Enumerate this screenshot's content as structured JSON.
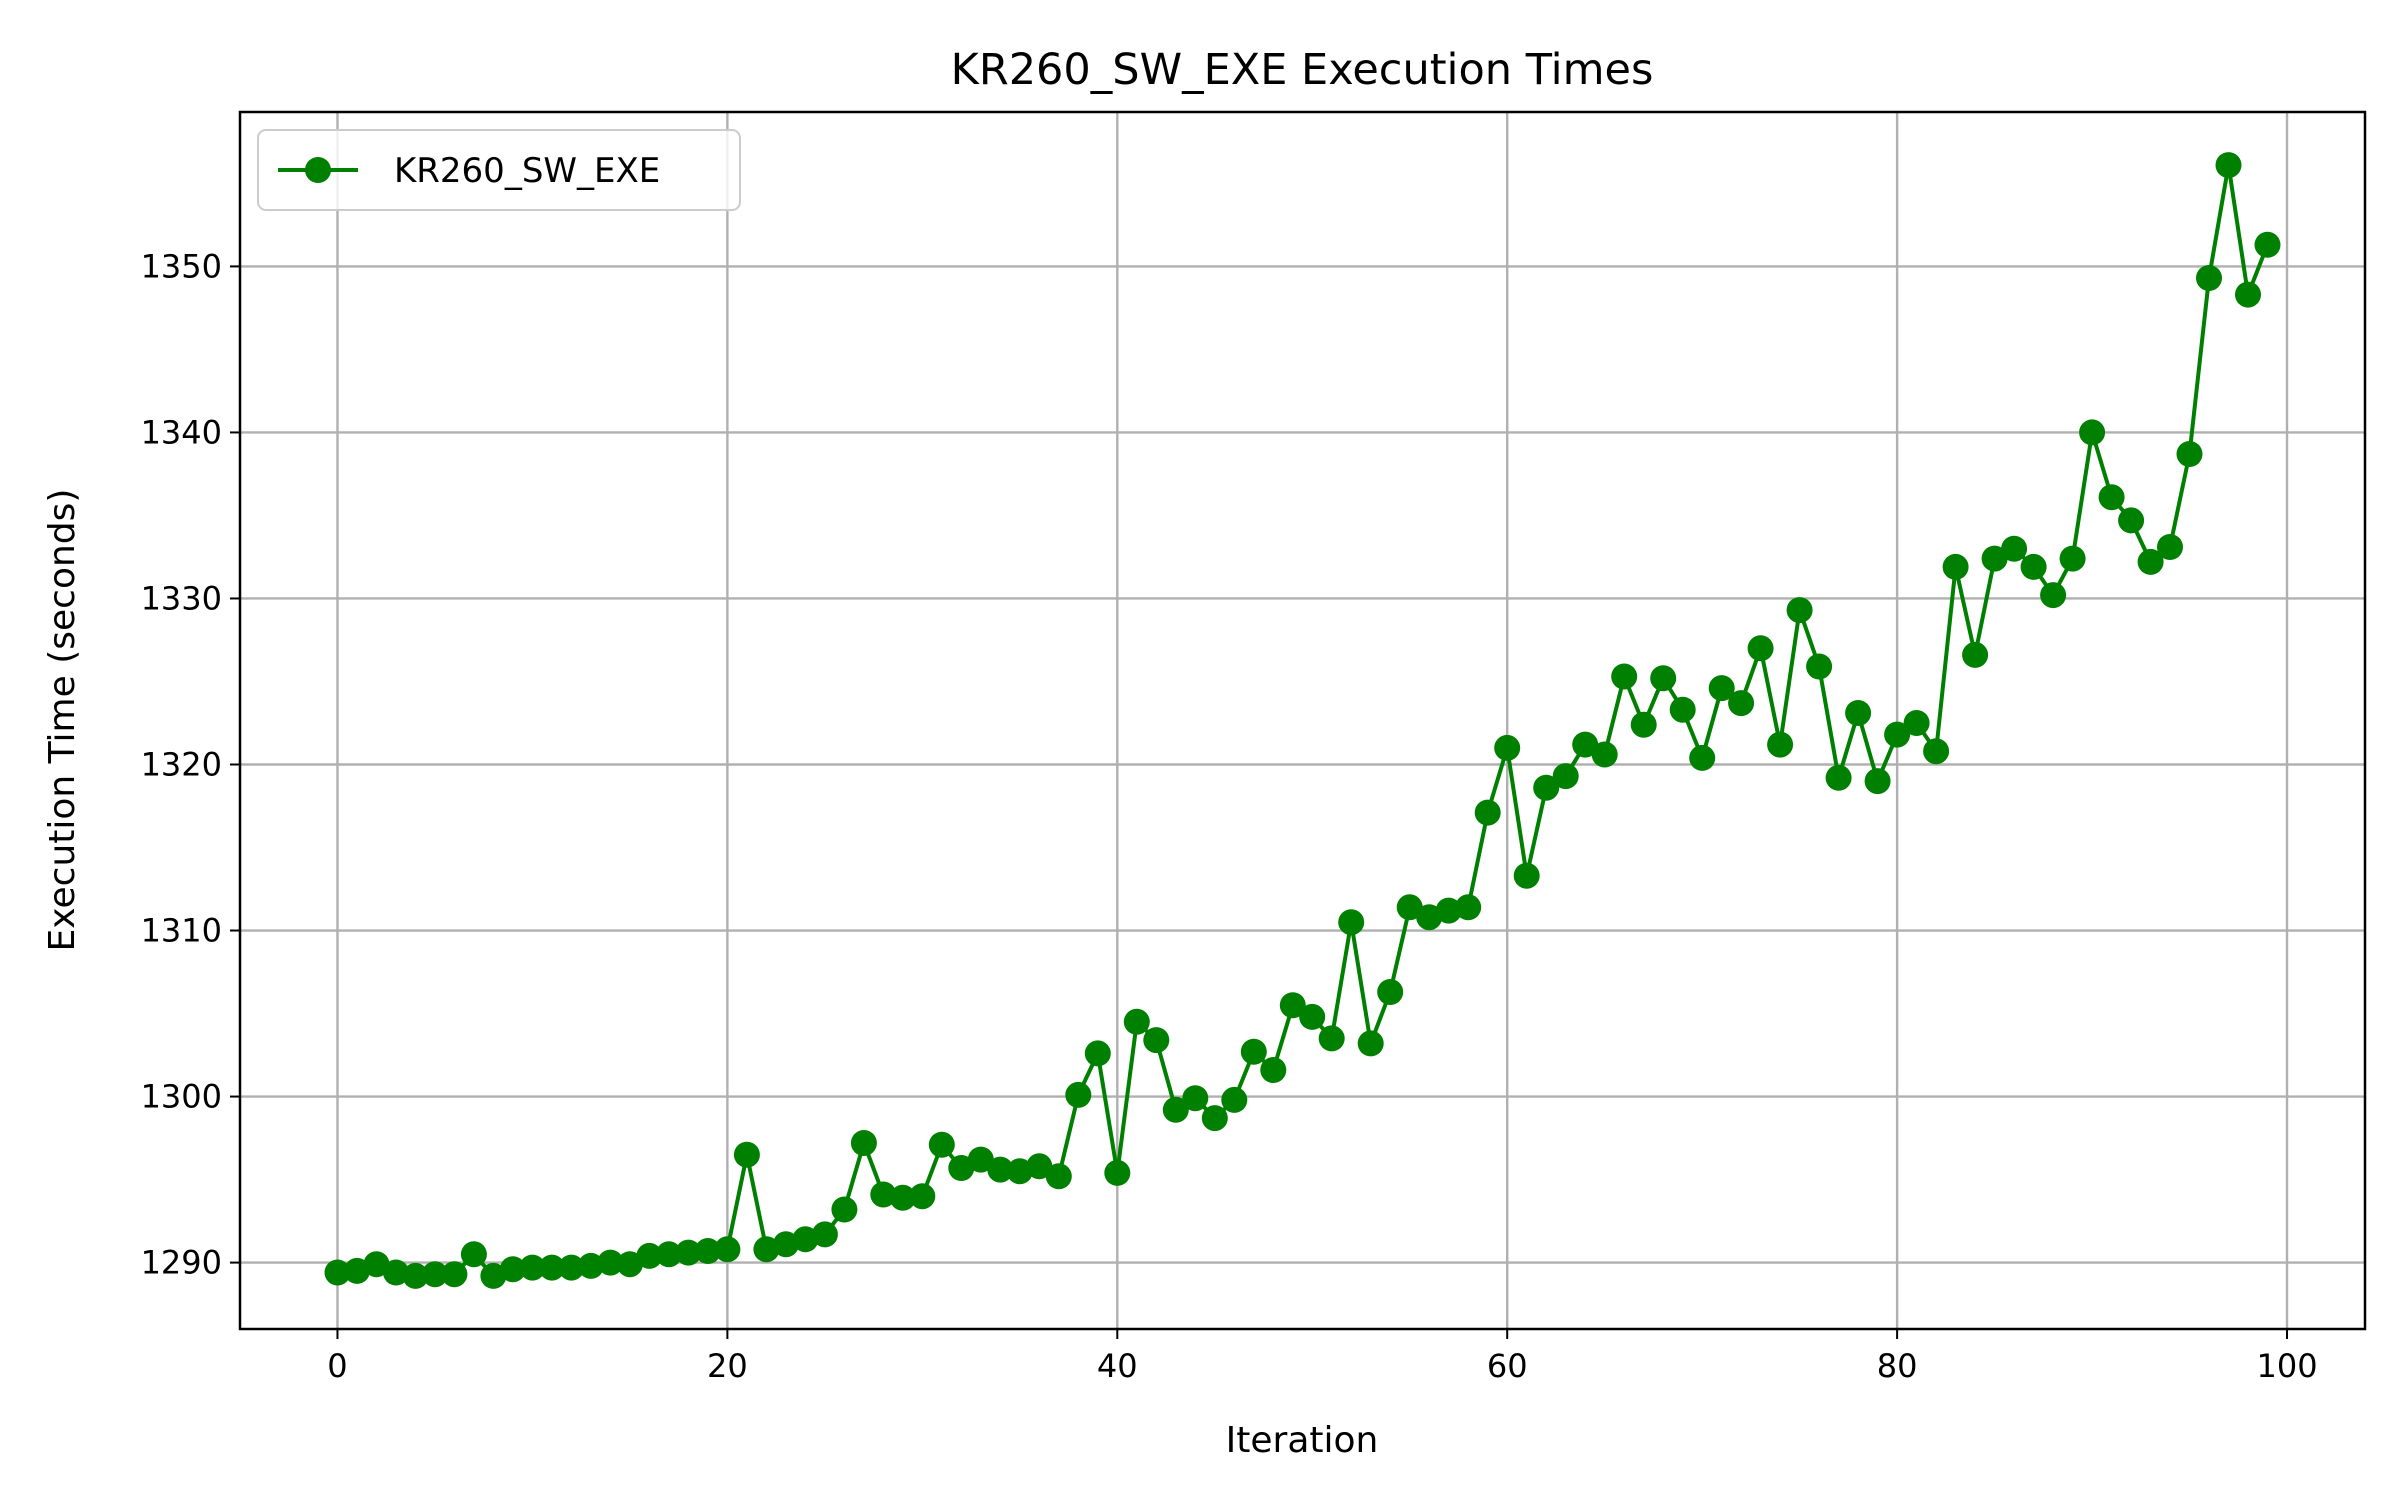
{
  "chart_data": {
    "type": "line",
    "title": "KR260_SW_EXE Execution Times",
    "xlabel": "Iteration",
    "ylabel": "Execution Time (seconds)",
    "xlim": [
      -5,
      104
    ],
    "ylim": [
      1286,
      1359.3
    ],
    "xticks": [
      0,
      20,
      40,
      60,
      80,
      100
    ],
    "yticks": [
      1290,
      1300,
      1310,
      1320,
      1330,
      1340,
      1350
    ],
    "grid": true,
    "legend_position": "top-left",
    "series": [
      {
        "name": "KR260_SW_EXE",
        "color": "#008000",
        "marker": "circle",
        "x": [
          0,
          1,
          2,
          3,
          4,
          5,
          6,
          7,
          8,
          9,
          10,
          11,
          12,
          13,
          14,
          15,
          16,
          17,
          18,
          19,
          20,
          21,
          22,
          23,
          24,
          25,
          26,
          27,
          28,
          29,
          30,
          31,
          32,
          33,
          34,
          35,
          36,
          37,
          38,
          39,
          40,
          41,
          42,
          43,
          44,
          45,
          46,
          47,
          48,
          49,
          50,
          51,
          52,
          53,
          54,
          55,
          56,
          57,
          58,
          59,
          60,
          61,
          62,
          63,
          64,
          65,
          66,
          67,
          68,
          69,
          70,
          71,
          72,
          73,
          74,
          75,
          76,
          77,
          78,
          79,
          80,
          81,
          82,
          83,
          84,
          85,
          86,
          87,
          88,
          89,
          90,
          91,
          92,
          93,
          94,
          95,
          96,
          97,
          98,
          99
        ],
        "values": [
          1289.4,
          1289.5,
          1289.9,
          1289.4,
          1289.2,
          1289.3,
          1289.3,
          1290.5,
          1289.2,
          1289.6,
          1289.7,
          1289.7,
          1289.7,
          1289.8,
          1290.0,
          1289.9,
          1290.4,
          1290.5,
          1290.6,
          1290.7,
          1290.8,
          1296.5,
          1290.8,
          1291.1,
          1291.4,
          1291.7,
          1293.2,
          1297.2,
          1294.1,
          1293.9,
          1294.0,
          1297.1,
          1295.7,
          1296.2,
          1295.6,
          1295.5,
          1295.8,
          1295.2,
          1300.1,
          1302.6,
          1295.4,
          1304.5,
          1303.4,
          1299.2,
          1299.9,
          1298.7,
          1299.8,
          1302.7,
          1301.6,
          1305.5,
          1304.8,
          1303.5,
          1310.5,
          1303.2,
          1306.3,
          1311.4,
          1310.8,
          1311.2,
          1311.4,
          1317.1,
          1321.0,
          1313.3,
          1318.6,
          1319.3,
          1321.2,
          1320.6,
          1325.3,
          1322.4,
          1325.2,
          1323.3,
          1320.4,
          1324.6,
          1323.7,
          1327.0,
          1321.2,
          1329.3,
          1325.9,
          1319.2,
          1323.1,
          1319.0,
          1321.8,
          1322.5,
          1320.8,
          1331.9,
          1326.6,
          1332.4,
          1333.0,
          1331.9,
          1330.2,
          1332.4,
          1340.0,
          1336.1,
          1334.7,
          1332.2,
          1333.1,
          1338.7,
          1349.3,
          1356.1,
          1348.3,
          1351.3
        ]
      }
    ]
  }
}
